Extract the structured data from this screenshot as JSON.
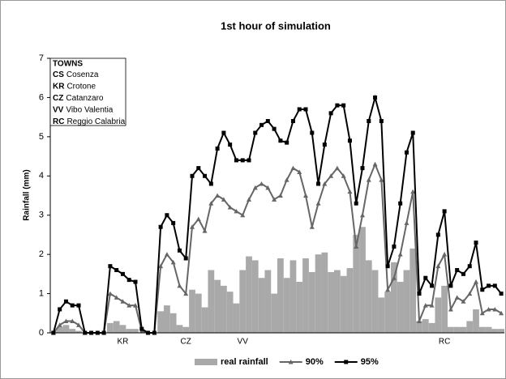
{
  "chart_data": {
    "type": "bar-line",
    "title": "1st hour of simulation",
    "y_label": "Rainfall (mm)",
    "towns": {
      "heading": "TOWNS",
      "items": [
        {
          "code": "CS",
          "name": "Cosenza"
        },
        {
          "code": "KR",
          "name": "Crotone"
        },
        {
          "code": "CZ",
          "name": "Catanzaro"
        },
        {
          "code": "VV",
          "name": "Vibo Valentia"
        },
        {
          "code": "RC",
          "name": "Reggio Calabria"
        }
      ]
    },
    "categories": [
      null,
      null,
      null,
      null,
      null,
      null,
      null,
      null,
      null,
      null,
      null,
      "KR",
      null,
      null,
      null,
      null,
      null,
      null,
      null,
      null,
      null,
      "CZ",
      null,
      null,
      null,
      null,
      null,
      null,
      null,
      null,
      "VV",
      null,
      null,
      null,
      null,
      null,
      null,
      null,
      null,
      null,
      null,
      null,
      null,
      null,
      null,
      null,
      null,
      null,
      null,
      null,
      null,
      null,
      null,
      null,
      null,
      null,
      null,
      null,
      null,
      null,
      null,
      null,
      "RC",
      null,
      null,
      null,
      null,
      null,
      null,
      null,
      null,
      null
    ],
    "series": [
      {
        "name": "real rainfall",
        "kind": "bar",
        "color": "#a9a9a9",
        "values": [
          0.05,
          0.15,
          0.2,
          0.1,
          0.05,
          0,
          0,
          0,
          0,
          0.25,
          0.3,
          0.2,
          0.1,
          0.1,
          0,
          0,
          0,
          0.55,
          0.7,
          0.5,
          0.2,
          0.15,
          1.1,
          1.0,
          0.65,
          1.6,
          1.35,
          1.2,
          1.05,
          0.75,
          1.6,
          1.95,
          1.85,
          1.4,
          1.6,
          1.0,
          1.9,
          1.4,
          1.85,
          1.3,
          1.9,
          1.55,
          2.0,
          2.05,
          1.55,
          1.6,
          1.45,
          1.65,
          2.5,
          2.7,
          1.85,
          1.6,
          0.9,
          1.05,
          1.8,
          1.3,
          1.6,
          2.15,
          0.3,
          0.35,
          0.25,
          0.9,
          1.2,
          0.15,
          0.15,
          0.15,
          0.3,
          0.6,
          0.15,
          0.15,
          0.1,
          0.1
        ]
      },
      {
        "name": "90%",
        "kind": "line",
        "marker": "triangle",
        "color": "#666666",
        "values": [
          0,
          0.2,
          0.3,
          0.3,
          0.2,
          0,
          0,
          0,
          0,
          1.0,
          0.9,
          0.8,
          0.7,
          0.7,
          0.05,
          0,
          0,
          1.7,
          2.0,
          1.8,
          1.2,
          1.0,
          2.7,
          2.9,
          2.6,
          3.3,
          3.5,
          3.4,
          3.2,
          3.1,
          3.0,
          3.4,
          3.7,
          3.8,
          3.7,
          3.4,
          3.5,
          3.9,
          4.2,
          4.1,
          3.5,
          2.7,
          3.3,
          3.8,
          4.0,
          4.2,
          4.0,
          3.6,
          2.2,
          3.0,
          3.9,
          4.3,
          3.9,
          1.1,
          1.4,
          2.0,
          2.8,
          3.6,
          0.3,
          0.7,
          0.7,
          1.7,
          2.0,
          0.6,
          0.9,
          0.8,
          1.0,
          1.3,
          0.5,
          0.6,
          0.6,
          0.5
        ]
      },
      {
        "name": "95%",
        "kind": "line",
        "marker": "square",
        "color": "#000000",
        "values": [
          0,
          0.6,
          0.8,
          0.7,
          0.7,
          0,
          0,
          0,
          0,
          1.7,
          1.6,
          1.5,
          1.35,
          1.3,
          0.1,
          0,
          0,
          2.7,
          3.0,
          2.8,
          2.1,
          1.9,
          4.0,
          4.2,
          4.0,
          3.8,
          4.7,
          5.1,
          4.8,
          4.4,
          4.4,
          4.4,
          5.1,
          5.3,
          5.4,
          5.2,
          4.9,
          4.85,
          5.4,
          5.7,
          5.7,
          5.1,
          3.8,
          4.8,
          5.6,
          5.8,
          5.8,
          4.9,
          3.3,
          4.2,
          5.4,
          6.0,
          5.4,
          1.7,
          2.2,
          3.3,
          4.6,
          5.1,
          1.0,
          1.4,
          1.2,
          2.5,
          3.1,
          1.2,
          1.6,
          1.5,
          1.7,
          2.3,
          1.1,
          1.2,
          1.2,
          1.0
        ]
      }
    ],
    "ylim": [
      0,
      7
    ],
    "yticks": [
      0,
      1,
      2,
      3,
      4,
      5,
      6,
      7
    ],
    "grid": false
  }
}
